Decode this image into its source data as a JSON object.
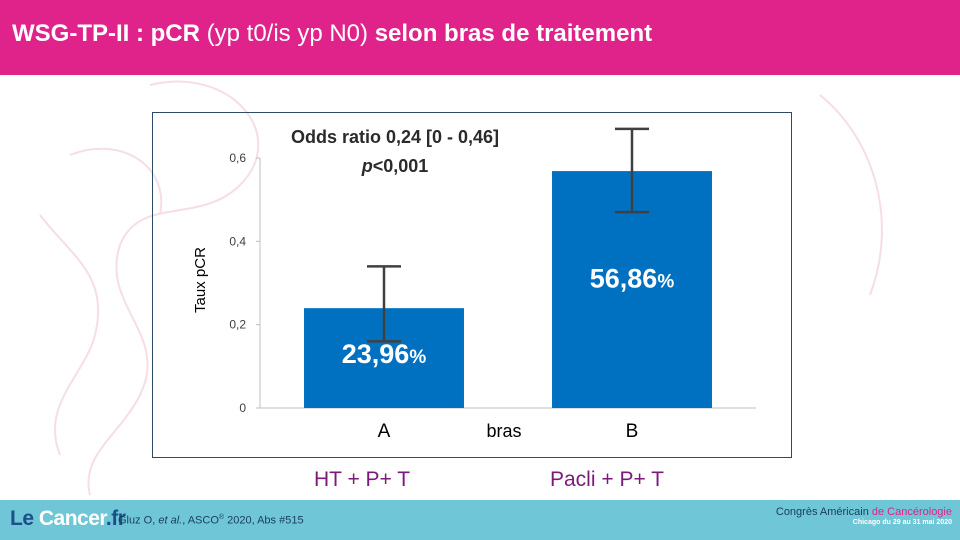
{
  "title": {
    "part1": "WSG-TP-II : pCR",
    "part2": " (yp t0/is yp N0) ",
    "part3": "selon bras de traitement"
  },
  "colors": {
    "header": "#e0238a",
    "bar": "#0070c0",
    "footer": "#6fc6d6",
    "group_label": "#7b1a7b"
  },
  "chart_data": {
    "type": "bar",
    "categories": [
      "A",
      "B"
    ],
    "values": [
      0.2396,
      0.5686
    ],
    "data_labels": [
      "23,96",
      "56,86"
    ],
    "data_label_suffix": "%",
    "error_bars": [
      {
        "low": 0.16,
        "high": 0.34
      },
      {
        "low": 0.47,
        "high": 0.67
      }
    ],
    "ylabel": "Taux pCR",
    "xlabel": "bras",
    "ylim": [
      0,
      0.6
    ],
    "yticks": [
      0,
      0.2,
      0.4,
      0.6
    ],
    "ytick_labels": [
      "0",
      "0,2",
      "0,4",
      "0,6"
    ],
    "annotation_line1": "Odds ratio 0,24 [0 - 0,46]",
    "annotation_p": "p",
    "annotation_rest": "<0,001",
    "grid": false,
    "legend": "none"
  },
  "group_labels": [
    "HT + P+ T",
    "Pacli + P+ T"
  ],
  "footer": {
    "logo_le": "Le",
    "logo_c": "C",
    "logo_ancer": "ancer",
    "logo_dot": ".fr",
    "citation_pre": "Gluz O, ",
    "citation_em": "et al.",
    "citation_mid": ", ASCO",
    "citation_sup": "®",
    "citation_post": " 2020, Abs #515",
    "congress_line1_a": "Congrès Américain ",
    "congress_line1_b": "de Cancérologie",
    "congress_line2": "Chicago du 29 au 31 mai 2020"
  }
}
